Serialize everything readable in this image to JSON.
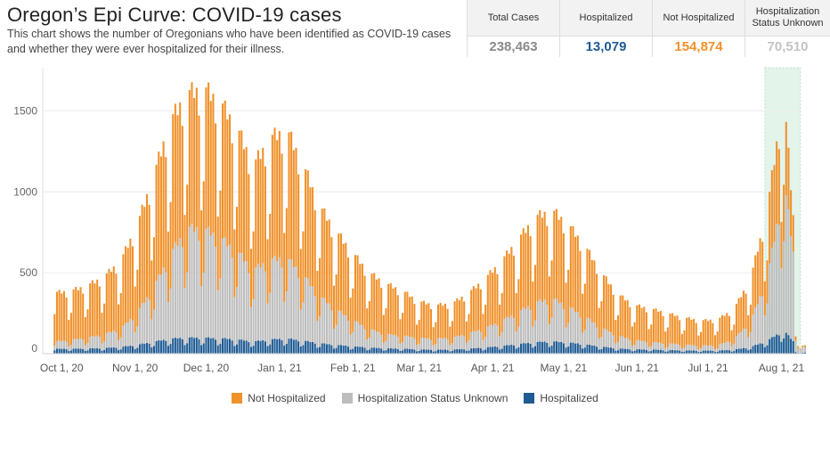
{
  "header": {
    "title": "Oregon’s Epi Curve: COVID-19 cases",
    "subtitle": "This chart shows the number of Oregonians who have been identified as COVID-19 cases and whether they were ever hospitalized for their illness."
  },
  "kpis": [
    {
      "label": "Total Cases",
      "value": "238,463",
      "color": "#8a8a8a"
    },
    {
      "label": "Hospitalized",
      "value": "13,079",
      "color": "#1f5b94"
    },
    {
      "label": "Not Hospitalized",
      "value": "154,874",
      "color": "#f0912b"
    },
    {
      "label": "Hospitalization Status Unknown",
      "value": "70,510",
      "color": "#c4c4c4"
    }
  ],
  "colors": {
    "not_hospitalized": "#f0912b",
    "unknown": "#bdbdbd",
    "hospitalized": "#1f5b94",
    "highlight": "#e3f4ea"
  },
  "chart_data": {
    "type": "bar",
    "stacked": true,
    "x_ticks": [
      "Oct 1, 20",
      "Nov 1, 20",
      "Dec 1, 20",
      "Jan 1, 21",
      "Feb 1, 21",
      "Mar 1, 21",
      "Apr 1, 21",
      "May 1, 21",
      "Jun 1, 21",
      "Jul 1, 21",
      "Aug 1, 21"
    ],
    "y_ticks": [
      0,
      500,
      1000,
      1500
    ],
    "ylim": [
      0,
      1800
    ],
    "grid": "horizontal",
    "legend_position": "bottom",
    "highlight_range": [
      "2021-07-25",
      "2021-08-09"
    ],
    "series_names": [
      "Not Hospitalized",
      "Hospitalization Status Unknown",
      "Hospitalized"
    ],
    "weekly_total_cases": [
      {
        "week_of": "2020-09-28",
        "value": 340
      },
      {
        "week_of": "2020-10-05",
        "value": 350
      },
      {
        "week_of": "2020-10-12",
        "value": 380
      },
      {
        "week_of": "2020-10-19",
        "value": 430
      },
      {
        "week_of": "2020-10-26",
        "value": 520
      },
      {
        "week_of": "2020-11-02",
        "value": 720
      },
      {
        "week_of": "2020-11-09",
        "value": 1000
      },
      {
        "week_of": "2020-11-16",
        "value": 1300
      },
      {
        "week_of": "2020-11-23",
        "value": 1450
      },
      {
        "week_of": "2020-11-30",
        "value": 1480
      },
      {
        "week_of": "2020-12-07",
        "value": 1400
      },
      {
        "week_of": "2020-12-14",
        "value": 1260
      },
      {
        "week_of": "2020-12-21",
        "value": 1050
      },
      {
        "week_of": "2020-12-28",
        "value": 1200
      },
      {
        "week_of": "2021-01-04",
        "value": 1250
      },
      {
        "week_of": "2021-01-11",
        "value": 1050
      },
      {
        "week_of": "2021-01-18",
        "value": 820
      },
      {
        "week_of": "2021-01-25",
        "value": 680
      },
      {
        "week_of": "2021-02-01",
        "value": 560
      },
      {
        "week_of": "2021-02-08",
        "value": 450
      },
      {
        "week_of": "2021-02-15",
        "value": 390
      },
      {
        "week_of": "2021-02-22",
        "value": 350
      },
      {
        "week_of": "2021-03-01",
        "value": 290
      },
      {
        "week_of": "2021-03-08",
        "value": 270
      },
      {
        "week_of": "2021-03-15",
        "value": 280
      },
      {
        "week_of": "2021-03-22",
        "value": 340
      },
      {
        "week_of": "2021-03-29",
        "value": 420
      },
      {
        "week_of": "2021-04-05",
        "value": 520
      },
      {
        "week_of": "2021-04-12",
        "value": 640
      },
      {
        "week_of": "2021-04-19",
        "value": 760
      },
      {
        "week_of": "2021-04-26",
        "value": 800
      },
      {
        "week_of": "2021-05-03",
        "value": 720
      },
      {
        "week_of": "2021-05-10",
        "value": 600
      },
      {
        "week_of": "2021-05-17",
        "value": 450
      },
      {
        "week_of": "2021-05-24",
        "value": 330
      },
      {
        "week_of": "2021-05-31",
        "value": 270
      },
      {
        "week_of": "2021-06-07",
        "value": 250
      },
      {
        "week_of": "2021-06-14",
        "value": 225
      },
      {
        "week_of": "2021-06-21",
        "value": 200
      },
      {
        "week_of": "2021-06-28",
        "value": 185
      },
      {
        "week_of": "2021-07-05",
        "value": 190
      },
      {
        "week_of": "2021-07-12",
        "value": 250
      },
      {
        "week_of": "2021-07-19",
        "value": 420
      },
      {
        "week_of": "2021-07-26",
        "value": 800
      },
      {
        "week_of": "2021-08-02",
        "value": 1450
      },
      {
        "week_of": "2021-08-09",
        "value": 250
      }
    ],
    "weekly_share_hospitalized": [
      {
        "week_of": "2020-09-28",
        "value": 0.08
      },
      {
        "week_of": "2020-11-30",
        "value": 0.06
      },
      {
        "week_of": "2021-03-01",
        "value": 0.08
      },
      {
        "week_of": "2021-06-07",
        "value": 0.09
      },
      {
        "week_of": "2021-08-09",
        "value": 0.09
      }
    ],
    "weekly_share_unknown": [
      {
        "week_of": "2020-09-28",
        "value": 0.12
      },
      {
        "week_of": "2020-10-26",
        "value": 0.2
      },
      {
        "week_of": "2020-11-23",
        "value": 0.42
      },
      {
        "week_of": "2021-01-11",
        "value": 0.35
      },
      {
        "week_of": "2021-02-15",
        "value": 0.2
      },
      {
        "week_of": "2021-04-26",
        "value": 0.3
      },
      {
        "week_of": "2021-06-07",
        "value": 0.17
      },
      {
        "week_of": "2021-07-05",
        "value": 0.15
      },
      {
        "week_of": "2021-07-26",
        "value": 0.45
      },
      {
        "week_of": "2021-08-09",
        "value": 0.7
      }
    ],
    "weekday_multipliers": [
      0.72,
      1.12,
      1.15,
      1.08,
      1.12,
      1.0,
      0.6
    ]
  }
}
